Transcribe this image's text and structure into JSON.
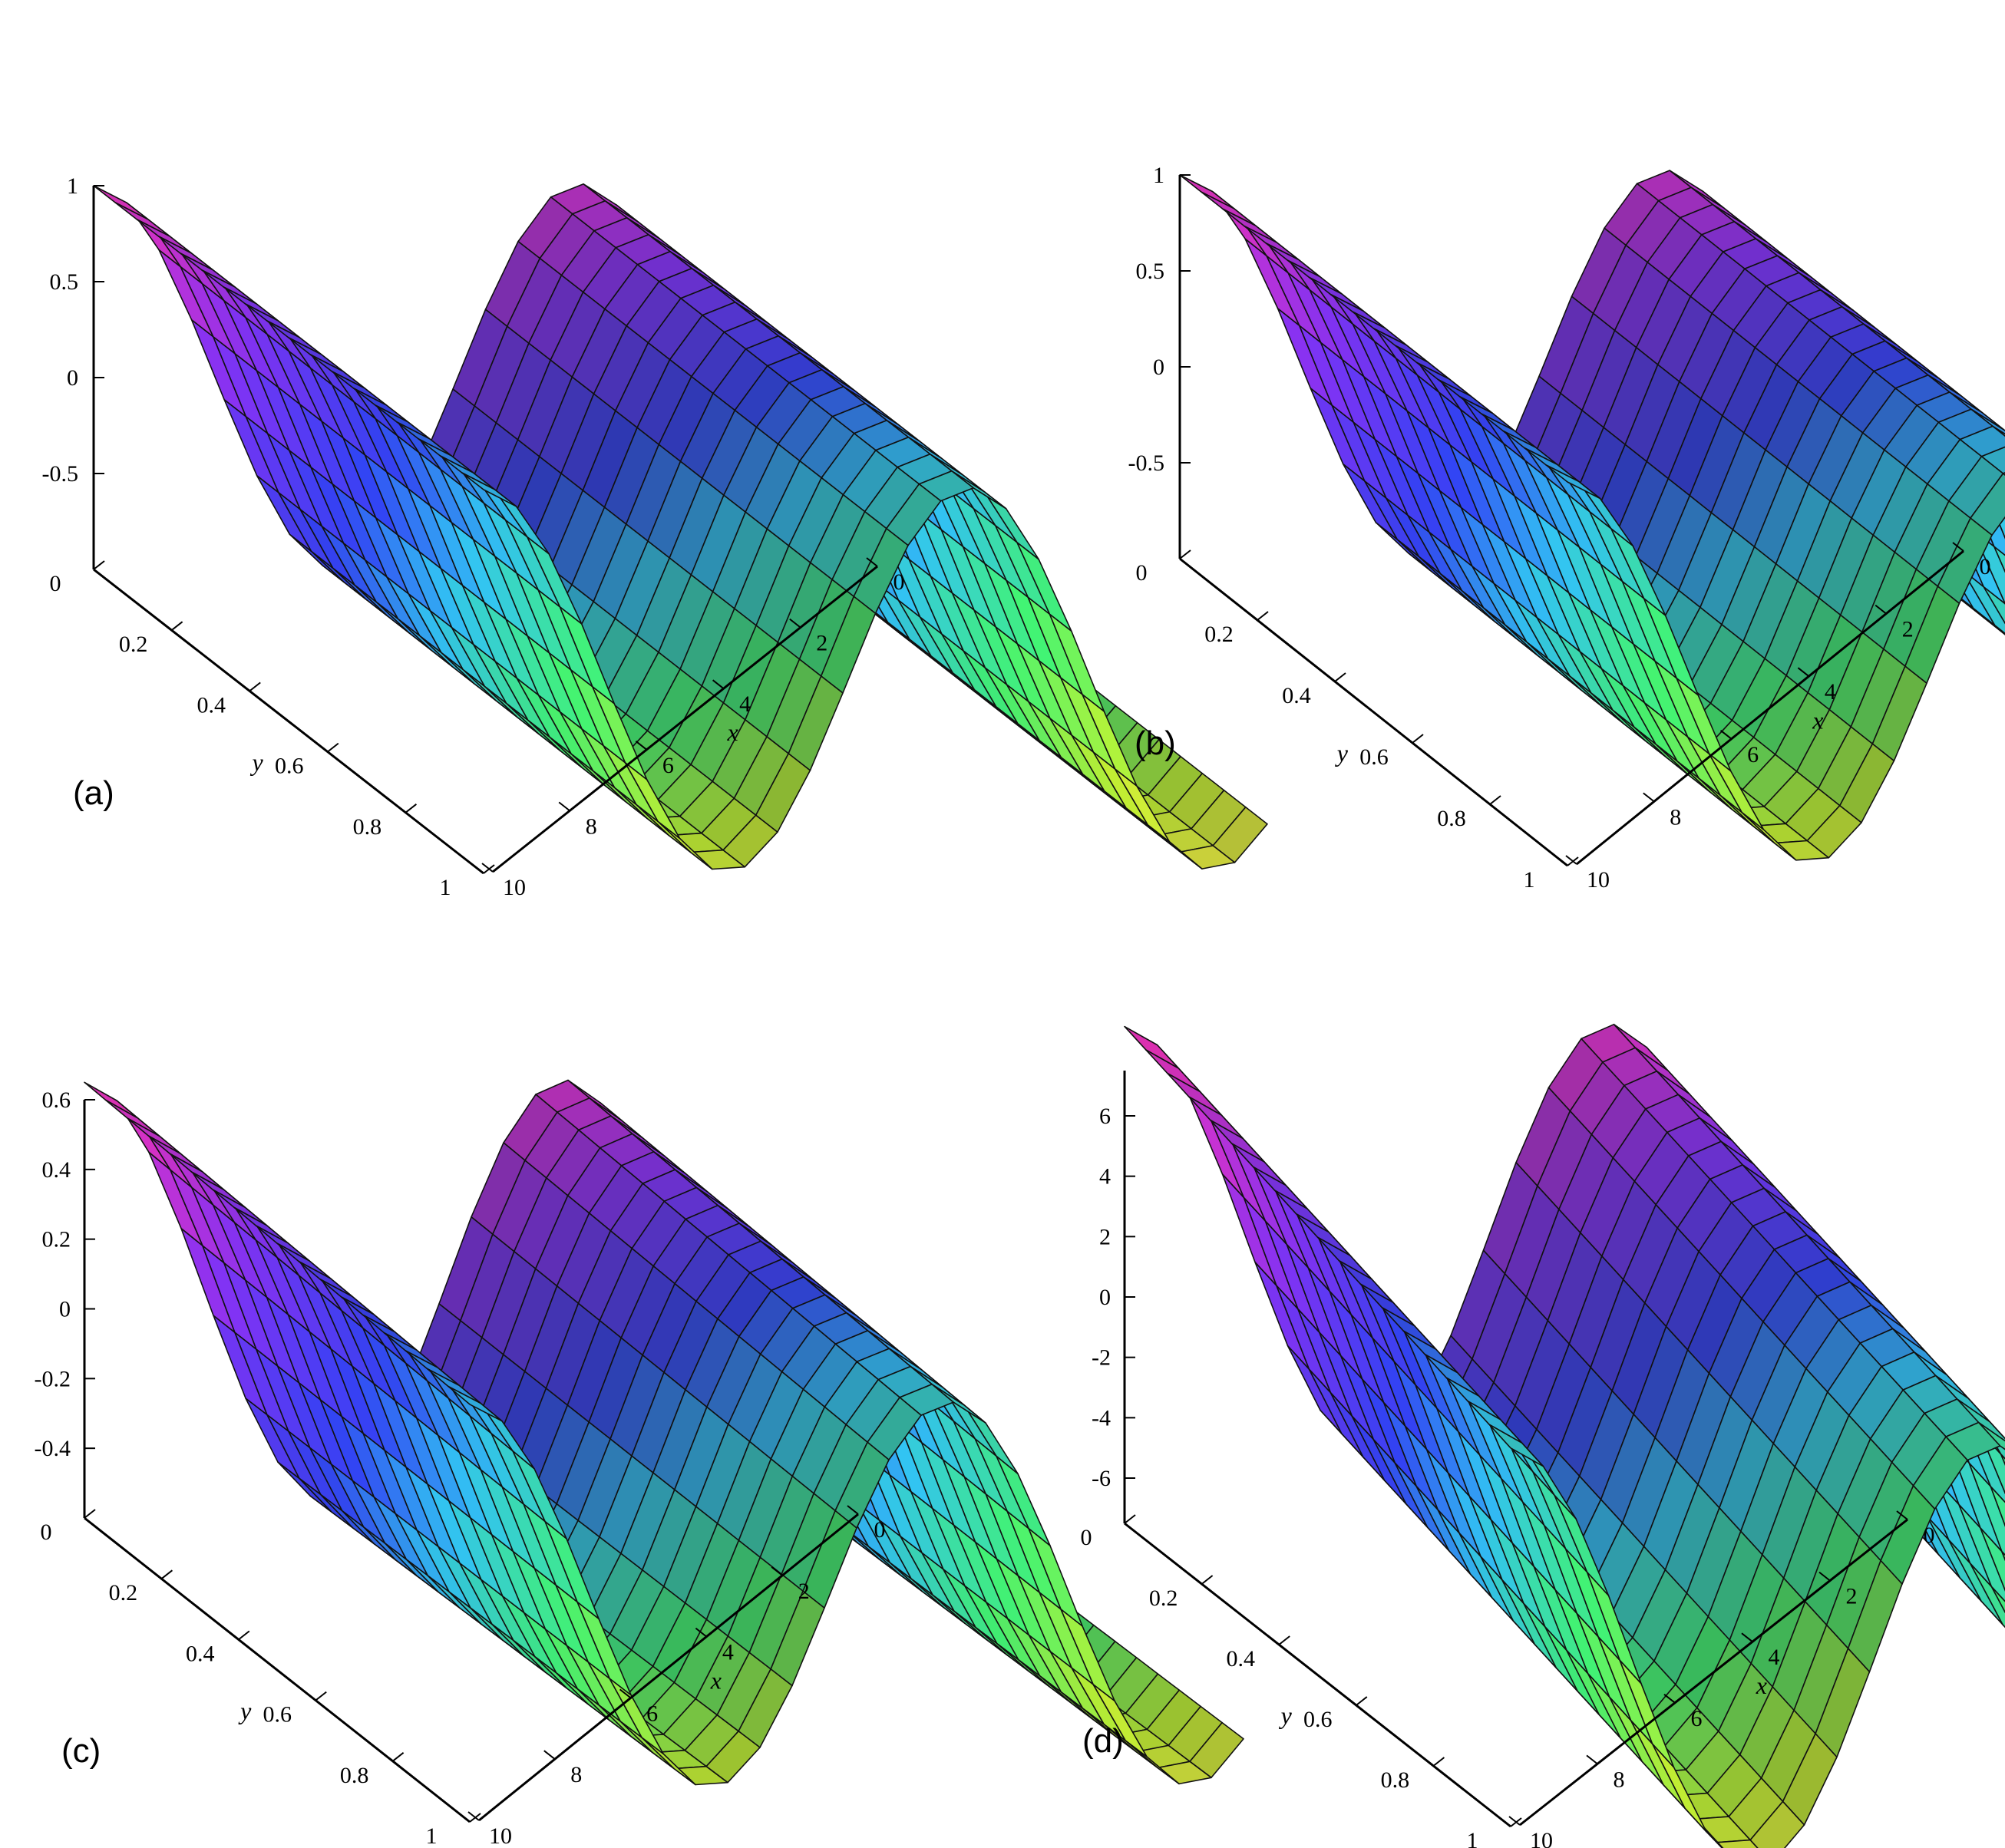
{
  "chart_data": [
    {
      "type": "surface",
      "panel_label": "(a)",
      "xlabel": "x",
      "ylabel": "y",
      "zlabel": "",
      "x_ticks": [
        "0",
        "2",
        "4",
        "6",
        "8",
        "10"
      ],
      "y_ticks": [
        "0",
        "0.2",
        "0.4",
        "0.6",
        "0.8",
        "1"
      ],
      "z_ticks": [
        "1",
        "0.5",
        "0",
        "-0.5"
      ],
      "xlim": [
        0,
        10
      ],
      "ylim": [
        0,
        1
      ],
      "zlim": [
        -1,
        1
      ],
      "surface": {
        "shape": "two ridges along y with a trough between them",
        "z_range": [
          -1,
          1
        ]
      },
      "colormap": "xyz spectrum (magenta, purple, blue, cyan, green, yellow)"
    },
    {
      "type": "surface",
      "panel_label": "(b)",
      "xlabel": "x",
      "ylabel": "y",
      "zlabel": "",
      "x_ticks": [
        "0",
        "2",
        "4",
        "6",
        "8",
        "10"
      ],
      "y_ticks": [
        "0",
        "0.2",
        "0.4",
        "0.6",
        "0.8",
        "1"
      ],
      "z_ticks": [
        "1",
        "0.5",
        "0",
        "-0.5"
      ],
      "xlim": [
        0,
        10
      ],
      "ylim": [
        0,
        1
      ],
      "zlim": [
        -1,
        1
      ],
      "surface": {
        "shape": "two ridges along y with a trough between them",
        "z_range": [
          -1,
          1
        ]
      },
      "colormap": "xyz spectrum (magenta, purple, blue, cyan, green, yellow)"
    },
    {
      "type": "surface",
      "panel_label": "(c)",
      "xlabel": "x",
      "ylabel": "y",
      "zlabel": "",
      "x_ticks": [
        "0",
        "2",
        "4",
        "6",
        "8",
        "10"
      ],
      "y_ticks": [
        "0",
        "0.2",
        "0.4",
        "0.6",
        "0.8",
        "1"
      ],
      "z_ticks": [
        "0.6",
        "0.4",
        "0.2",
        "0",
        "-0.2",
        "-0.4"
      ],
      "xlim": [
        0,
        10
      ],
      "ylim": [
        0,
        1
      ],
      "zlim": [
        -0.6,
        0.6
      ],
      "surface": {
        "shape": "two ridges along y with a trough between them",
        "z_range": [
          -0.55,
          0.65
        ]
      },
      "colormap": "xyz spectrum (magenta, purple, blue, cyan, green, yellow)"
    },
    {
      "type": "surface",
      "panel_label": "(d)",
      "xlabel": "x",
      "ylabel": "y",
      "zlabel": "",
      "x_ticks": [
        "0",
        "2",
        "4",
        "6",
        "8",
        "10"
      ],
      "y_ticks": [
        "0",
        "0.2",
        "0.4",
        "0.6",
        "0.8",
        "1"
      ],
      "z_ticks": [
        "6",
        "4",
        "2",
        "0",
        "-2",
        "-4",
        "-6"
      ],
      "xlim": [
        0,
        10
      ],
      "ylim": [
        0,
        1
      ],
      "zlim": [
        -7.5,
        7.5
      ],
      "surface": {
        "shape": "two ridges along y with a trough between them; front ridge tilted in y",
        "z_range": [
          -7,
          7
        ]
      },
      "colormap": "xyz spectrum (magenta, purple, blue, cyan, green, yellow)"
    }
  ]
}
